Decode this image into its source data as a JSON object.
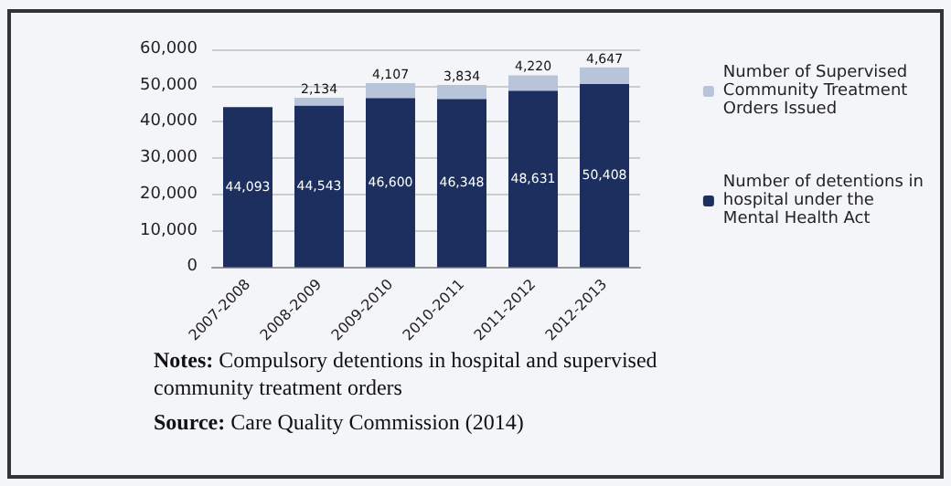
{
  "chart_data": {
    "type": "bar",
    "stacked": true,
    "categories": [
      "2007-2008",
      "2008-2009",
      "2009-2010",
      "2010-2011",
      "2011-2012",
      "2012-2013"
    ],
    "series": [
      {
        "name": "Number of detentions in hospital under the Mental Health Act",
        "color": "#1c2f5e",
        "values": [
          44093,
          44543,
          46600,
          46348,
          48631,
          50408
        ],
        "value_labels": [
          "44,093",
          "44,543",
          "46,600",
          "46,348",
          "48,631",
          "50,408"
        ]
      },
      {
        "name": "Number of Supervised Community Treatment Orders Issued",
        "color": "#b7c4da",
        "values": [
          null,
          2134,
          4107,
          3834,
          4220,
          4647
        ],
        "value_labels": [
          null,
          "2,134",
          "4,107",
          "3,834",
          "4,220",
          "4,647"
        ]
      }
    ],
    "ylim": [
      0,
      60000
    ],
    "yticks": [
      {
        "value": 0,
        "label": "0"
      },
      {
        "value": 10000,
        "label": "10,000"
      },
      {
        "value": 20000,
        "label": "20,000"
      },
      {
        "value": 30000,
        "label": "30,000"
      },
      {
        "value": 40000,
        "label": "40,000"
      },
      {
        "value": 50000,
        "label": "50,000"
      },
      {
        "value": 60000,
        "label": "60,000"
      }
    ],
    "grid": "y",
    "legend": "right",
    "annotations": [
      "Notes: Compulsory detentions in hospital and supervised community treatment orders",
      "Source: Care Quality Commission (2014)"
    ]
  }
}
